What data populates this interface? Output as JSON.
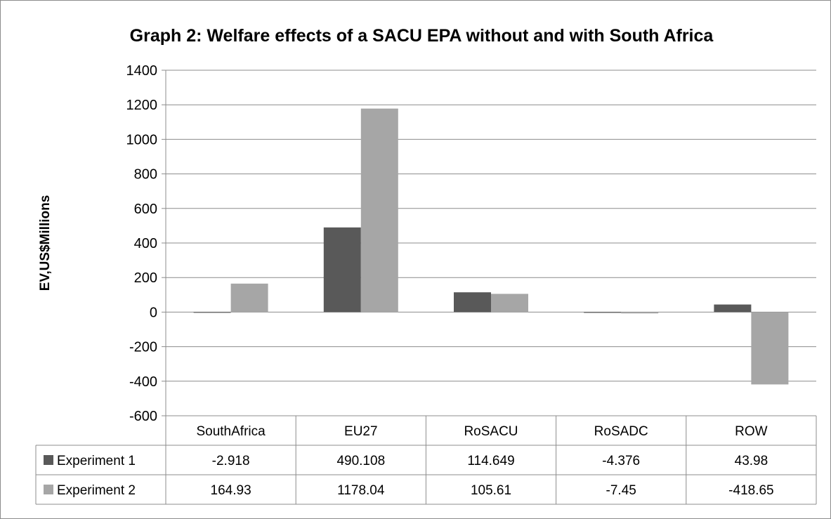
{
  "chart_data": {
    "type": "bar",
    "title": "Graph 2: Welfare effects of a SACU EPA without and with South Africa",
    "ylabel": "EV,US$Millions",
    "xlabel": "",
    "categories": [
      "SouthAfrica",
      "EU27",
      "RoSACU",
      "RoSADC",
      "ROW"
    ],
    "series": [
      {
        "name": "Experiment 1",
        "values": [
          -2.918,
          490.108,
          114.649,
          -4.376,
          43.98
        ],
        "labels": [
          "-2.918",
          "490.108",
          "114.649",
          "-4.376",
          "43.98"
        ],
        "color": "#595959"
      },
      {
        "name": "Experiment 2",
        "values": [
          164.93,
          1178.04,
          105.61,
          -7.45,
          -418.65
        ],
        "labels": [
          "164.93",
          "1178.04",
          "105.61",
          "-7.45",
          "-418.65"
        ],
        "color": "#a6a6a6"
      }
    ],
    "ylim": [
      -600,
      1400
    ],
    "yticks": [
      1400,
      1200,
      1000,
      800,
      600,
      400,
      200,
      0,
      -200,
      -400,
      -600
    ],
    "grid": true,
    "legend": "data-table"
  }
}
